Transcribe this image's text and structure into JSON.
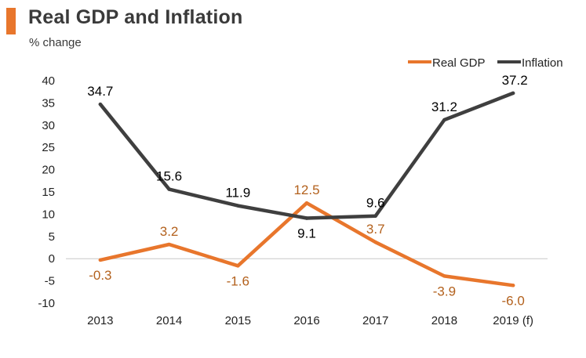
{
  "header": {
    "title": "Real GDP and Inflation",
    "subtitle": "% change"
  },
  "colors": {
    "accent": "#E8762C",
    "gdp": "#E8762C",
    "inflation": "#3F3F3F",
    "gdp_label": "#B3611D",
    "inflation_label": "#000000"
  },
  "chart_data": {
    "type": "line",
    "title": "Real GDP and Inflation",
    "subtitle": "% change",
    "xlabel": "",
    "ylabel": "",
    "categories": [
      "2013",
      "2014",
      "2015",
      "2016",
      "2017",
      "2018",
      "2019 (f)"
    ],
    "ylim": [
      -10,
      40
    ],
    "yticks": [
      40,
      35,
      30,
      25,
      20,
      15,
      10,
      5,
      0,
      -5,
      -10
    ],
    "grid": false,
    "legend_position": "top-right",
    "series": [
      {
        "name": "Real GDP",
        "values": [
          -0.3,
          3.2,
          -1.6,
          12.5,
          3.7,
          -3.9,
          -6.0
        ],
        "labels": [
          "-0.3",
          "3.2",
          "-1.6",
          "12.5",
          "3.7",
          "-3.9",
          "-6.0"
        ]
      },
      {
        "name": "Inflation",
        "values": [
          34.7,
          15.6,
          11.9,
          9.1,
          9.6,
          31.2,
          37.2
        ],
        "labels": [
          "34.7",
          "15.6",
          "11.9",
          "9.1",
          "9.6",
          "31.2",
          "37.2"
        ]
      }
    ]
  }
}
